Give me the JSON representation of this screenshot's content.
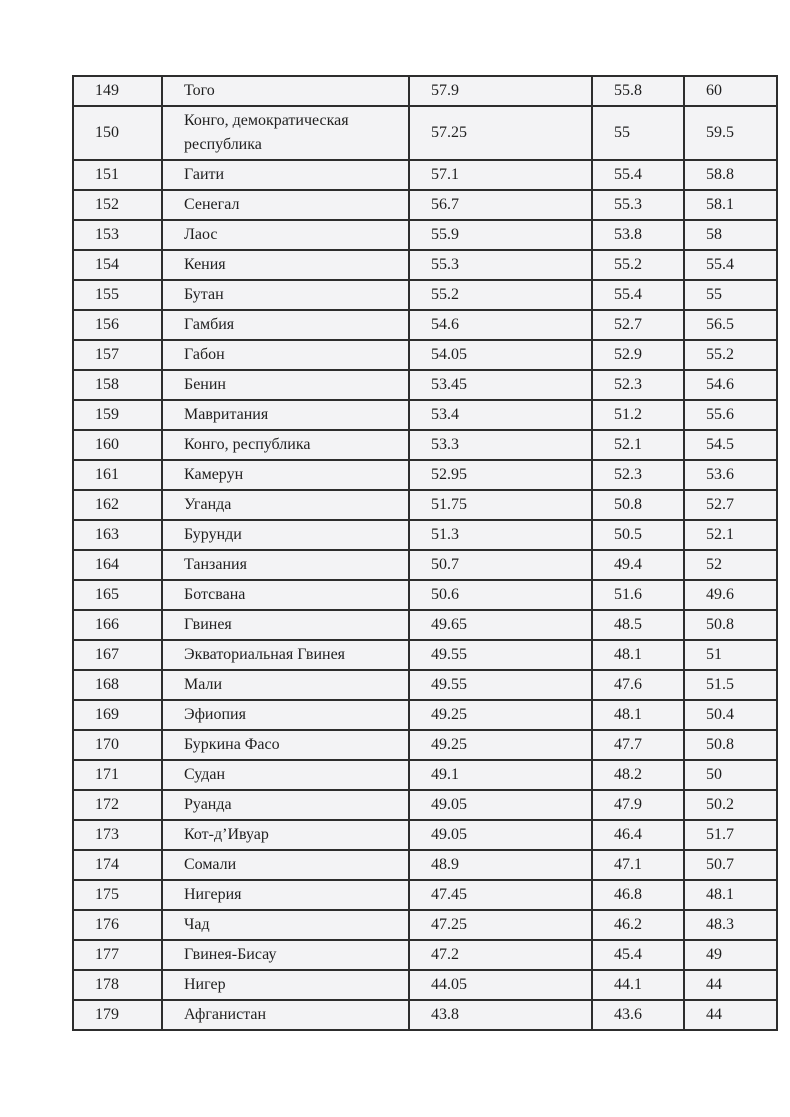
{
  "colors": {
    "page_background": "#ffffff",
    "cell_background": "#f3f3f5",
    "border": "#2d2d2d",
    "text": "#1f1f1f"
  },
  "table": {
    "rows": [
      {
        "rank": "149",
        "country": "Того",
        "values": [
          "57.9",
          "55.8",
          "60"
        ]
      },
      {
        "rank": "150",
        "country": "Конго, демократическая республика",
        "values": [
          "57.25",
          "55",
          "59.5"
        ]
      },
      {
        "rank": "151",
        "country": "Гаити",
        "values": [
          "57.1",
          "55.4",
          "58.8"
        ]
      },
      {
        "rank": "152",
        "country": "Сенегал",
        "values": [
          "56.7",
          "55.3",
          "58.1"
        ]
      },
      {
        "rank": "153",
        "country": "Лаос",
        "values": [
          "55.9",
          "53.8",
          "58"
        ]
      },
      {
        "rank": "154",
        "country": "Кения",
        "values": [
          "55.3",
          "55.2",
          "55.4"
        ]
      },
      {
        "rank": "155",
        "country": "Бутан",
        "values": [
          "55.2",
          "55.4",
          "55"
        ]
      },
      {
        "rank": "156",
        "country": "Гамбия",
        "values": [
          "54.6",
          "52.7",
          "56.5"
        ]
      },
      {
        "rank": "157",
        "country": "Габон",
        "values": [
          "54.05",
          "52.9",
          "55.2"
        ]
      },
      {
        "rank": "158",
        "country": "Бенин",
        "values": [
          "53.45",
          "52.3",
          "54.6"
        ]
      },
      {
        "rank": "159",
        "country": "Мавритания",
        "values": [
          "53.4",
          "51.2",
          "55.6"
        ]
      },
      {
        "rank": "160",
        "country": "Конго, республика",
        "values": [
          "53.3",
          "52.1",
          "54.5"
        ]
      },
      {
        "rank": "161",
        "country": "Камерун",
        "values": [
          "52.95",
          "52.3",
          "53.6"
        ]
      },
      {
        "rank": "162",
        "country": "Уганда",
        "values": [
          "51.75",
          "50.8",
          "52.7"
        ]
      },
      {
        "rank": "163",
        "country": "Бурунди",
        "values": [
          "51.3",
          "50.5",
          "52.1"
        ]
      },
      {
        "rank": "164",
        "country": "Танзания",
        "values": [
          "50.7",
          "49.4",
          "52"
        ]
      },
      {
        "rank": "165",
        "country": "Ботсвана",
        "values": [
          "50.6",
          "51.6",
          "49.6"
        ]
      },
      {
        "rank": "166",
        "country": "Гвинея",
        "values": [
          "49.65",
          "48.5",
          "50.8"
        ]
      },
      {
        "rank": "167",
        "country": "Экваториальная Гвинея",
        "values": [
          "49.55",
          "48.1",
          "51"
        ]
      },
      {
        "rank": "168",
        "country": "Мали",
        "values": [
          "49.55",
          "47.6",
          "51.5"
        ]
      },
      {
        "rank": "169",
        "country": "Эфиопия",
        "values": [
          "49.25",
          "48.1",
          "50.4"
        ]
      },
      {
        "rank": "170",
        "country": "Буркина Фасо",
        "values": [
          "49.25",
          "47.7",
          "50.8"
        ]
      },
      {
        "rank": "171",
        "country": "Судан",
        "values": [
          "49.1",
          "48.2",
          "50"
        ]
      },
      {
        "rank": "172",
        "country": "Руанда",
        "values": [
          "49.05",
          "47.9",
          "50.2"
        ]
      },
      {
        "rank": "173",
        "country": "Кот-д’Ивуар",
        "values": [
          "49.05",
          "46.4",
          "51.7"
        ]
      },
      {
        "rank": "174",
        "country": "Сомали",
        "values": [
          "48.9",
          "47.1",
          "50.7"
        ]
      },
      {
        "rank": "175",
        "country": "Нигерия",
        "values": [
          "47.45",
          "46.8",
          "48.1"
        ]
      },
      {
        "rank": "176",
        "country": "Чад",
        "values": [
          "47.25",
          "46.2",
          "48.3"
        ]
      },
      {
        "rank": "177",
        "country": "Гвинея-Бисау",
        "values": [
          "47.2",
          "45.4",
          "49"
        ]
      },
      {
        "rank": "178",
        "country": "Нигер",
        "values": [
          "44.05",
          "44.1",
          "44"
        ]
      },
      {
        "rank": "179",
        "country": "Афганистан",
        "values": [
          "43.8",
          "43.6",
          "44"
        ]
      }
    ]
  }
}
